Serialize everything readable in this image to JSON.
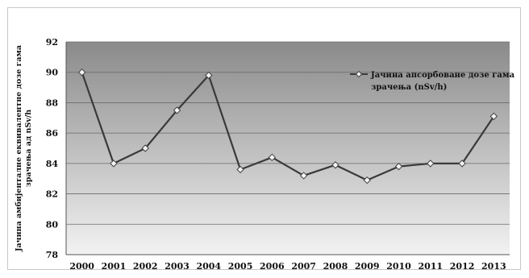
{
  "chart_data": {
    "type": "line",
    "title": "",
    "xlabel": "",
    "ylabel_lines": [
      "Јачина амбијенталне еквивалентне дозе гама",
      "зрачења ад nSv/h"
    ],
    "categories": [
      "2000",
      "2001",
      "2002",
      "2003",
      "2004",
      "2005",
      "2006",
      "2007",
      "2008",
      "2009",
      "2010",
      "2011",
      "2012",
      "2013"
    ],
    "series": [
      {
        "name": "Јачина апсорбоване дозе гама зрачења (nSv/h)",
        "name_lines": [
          "Јачина апсорбоване дозе гама",
          "зрачења (nSv/h)"
        ],
        "values": [
          90.0,
          84.0,
          85.0,
          87.5,
          89.8,
          83.6,
          84.4,
          83.2,
          83.9,
          82.9,
          83.8,
          84.0,
          84.0,
          87.1
        ],
        "color": "#3a3a3a",
        "marker": "diamond"
      }
    ],
    "ylim": [
      78,
      92
    ],
    "yticks": [
      78,
      80,
      82,
      84,
      86,
      88,
      90,
      92
    ],
    "grid": true,
    "legend_position": "top-right",
    "plot_background": [
      "#8a8a8a",
      "#f2f2f2"
    ]
  }
}
